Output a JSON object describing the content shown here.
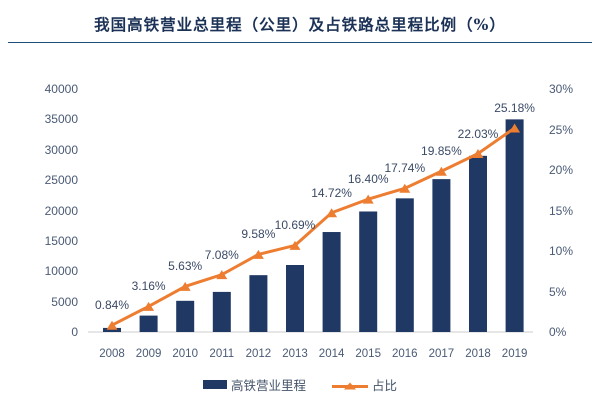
{
  "title": "我国高铁营业总里程（公里）及占铁路总里程比例（%）",
  "chart_data": {
    "type": "combo",
    "categories": [
      "2008",
      "2009",
      "2010",
      "2011",
      "2012",
      "2013",
      "2014",
      "2015",
      "2016",
      "2017",
      "2018",
      "2019"
    ],
    "series": [
      {
        "name": "高铁营业里程",
        "type": "bar",
        "axis": "left",
        "values": [
          672,
          2699,
          5133,
          6601,
          9356,
          11028,
          16456,
          19838,
          22000,
          25164,
          29000,
          35000
        ]
      },
      {
        "name": "占比",
        "type": "line",
        "axis": "right",
        "values": [
          0.84,
          3.16,
          5.63,
          7.08,
          9.58,
          10.69,
          14.72,
          16.4,
          17.74,
          19.85,
          22.03,
          25.18
        ],
        "labels": [
          "0.84%",
          "3.16%",
          "5.63%",
          "7.08%",
          "9.58%",
          "10.69%",
          "14.72%",
          "16.40%",
          "17.74%",
          "19.85%",
          "22.03%",
          "25.18%"
        ]
      }
    ],
    "left_axis": {
      "min": 0,
      "max": 40000,
      "step": 5000,
      "ticks": [
        "0",
        "5000",
        "10000",
        "15000",
        "20000",
        "25000",
        "30000",
        "35000",
        "40000"
      ]
    },
    "right_axis": {
      "min": 0,
      "max": 30,
      "step": 5,
      "ticks": [
        "0%",
        "5%",
        "10%",
        "15%",
        "20%",
        "25%",
        "30%"
      ]
    },
    "legend_position": "bottom",
    "grid": false
  },
  "legend": {
    "items": [
      {
        "label": "高铁营业里程"
      },
      {
        "label": "占比"
      }
    ]
  },
  "colors": {
    "bar": "#1F3864",
    "line": "#ED7D31",
    "title": "#1B3156",
    "divider": "#1F4E79",
    "axis_text": "#4A5A75",
    "data_label_text": "#3A4A66",
    "legend_text": "#44546A",
    "baseline": "#D6D6D6",
    "background": "#FFFFFF"
  }
}
